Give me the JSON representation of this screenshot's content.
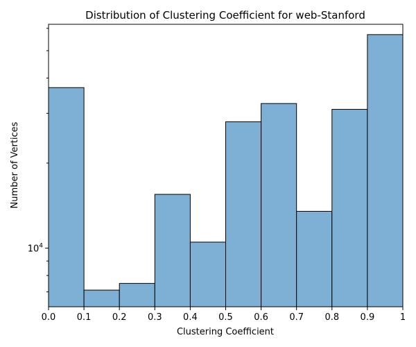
{
  "chart_data": {
    "type": "bar",
    "title": "Distribution of Clustering Coefficient for web-Stanford",
    "xlabel": "Clustering Coefficient",
    "ylabel": "Number of Vertices",
    "xlim": [
      0,
      1
    ],
    "yscale": "log",
    "ylim": [
      6200,
      62000
    ],
    "bin_edges": [
      0,
      0.1,
      0.2,
      0.3,
      0.4,
      0.5,
      0.6,
      0.7,
      0.8,
      0.9,
      1.0
    ],
    "values": [
      37000,
      7100,
      7500,
      15500,
      10500,
      28000,
      32500,
      13500,
      31000,
      57000
    ],
    "xtick_labels": [
      "0.0",
      "0.1",
      "0.2",
      "0.3",
      "0.4",
      "0.5",
      "0.6",
      "0.7",
      "0.8",
      "0.9",
      "1"
    ],
    "ytick_major": [
      {
        "value": 10000,
        "base": "10",
        "exp": "4"
      }
    ],
    "ytick_minor": [
      7000,
      8000,
      9000,
      20000,
      30000,
      40000,
      50000,
      60000
    ],
    "colors": {
      "bar_fill": "#7eb0d6",
      "bar_edge": "#000000"
    },
    "grid": false,
    "legend": "none"
  }
}
